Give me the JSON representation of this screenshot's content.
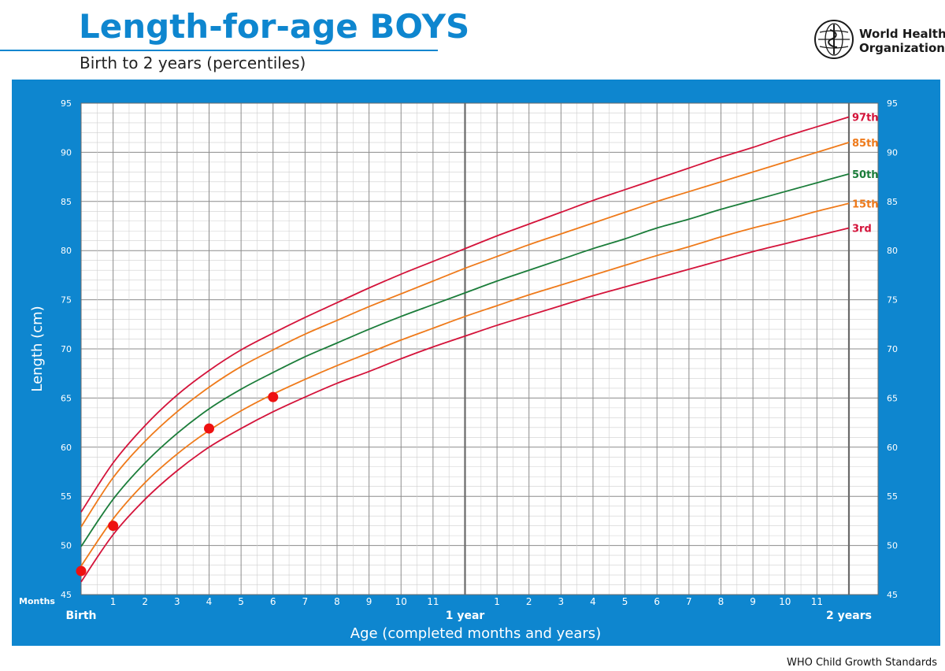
{
  "header": {
    "title": "Length-for-age BOYS",
    "subtitle": "Birth to 2 years (percentiles)",
    "org_line1": "World Health",
    "org_line2": "Organization",
    "logo_icon": "who-emblem-icon"
  },
  "footer": {
    "text": "WHO Child Growth Standards"
  },
  "colors": {
    "panel": "#0e86cf",
    "grid_minor": "#cfcfcf",
    "grid_major": "#8c8c8c",
    "p97": "#d4133a",
    "p85": "#ef7a1a",
    "p50": "#1b7d3a",
    "p15": "#ef7a1a",
    "p3": "#d4133a",
    "points": "#ee1111"
  },
  "chart_data": {
    "type": "line",
    "title": "Length-for-age BOYS",
    "subtitle": "Birth to 2 years (percentiles)",
    "xlabel": "Age (completed months and years)",
    "ylabel": "Length (cm)",
    "xlim": [
      0,
      24
    ],
    "ylim": [
      45,
      95
    ],
    "y_ticks": [
      45,
      50,
      55,
      60,
      65,
      70,
      75,
      80,
      85,
      90,
      95
    ],
    "x_tick_labels": [
      {
        "x": 0,
        "label": "Birth"
      },
      {
        "x": 1,
        "label": "1"
      },
      {
        "x": 2,
        "label": "2"
      },
      {
        "x": 3,
        "label": "3"
      },
      {
        "x": 4,
        "label": "4"
      },
      {
        "x": 5,
        "label": "5"
      },
      {
        "x": 6,
        "label": "6"
      },
      {
        "x": 7,
        "label": "7"
      },
      {
        "x": 8,
        "label": "8"
      },
      {
        "x": 9,
        "label": "9"
      },
      {
        "x": 10,
        "label": "10"
      },
      {
        "x": 11,
        "label": "11"
      },
      {
        "x": 12,
        "label": "1 year"
      },
      {
        "x": 13,
        "label": "1"
      },
      {
        "x": 14,
        "label": "2"
      },
      {
        "x": 15,
        "label": "3"
      },
      {
        "x": 16,
        "label": "4"
      },
      {
        "x": 17,
        "label": "5"
      },
      {
        "x": 18,
        "label": "6"
      },
      {
        "x": 19,
        "label": "7"
      },
      {
        "x": 20,
        "label": "8"
      },
      {
        "x": 21,
        "label": "9"
      },
      {
        "x": 22,
        "label": "10"
      },
      {
        "x": 23,
        "label": "11"
      },
      {
        "x": 24,
        "label": "2 years"
      }
    ],
    "x_unit_label": "Months",
    "grid": true,
    "x": [
      0,
      1,
      2,
      3,
      4,
      5,
      6,
      7,
      8,
      9,
      10,
      11,
      12,
      13,
      14,
      15,
      16,
      17,
      18,
      19,
      20,
      21,
      22,
      23,
      24
    ],
    "series": [
      {
        "name": "97th",
        "color_key": "p97",
        "values": [
          53.4,
          58.4,
          62.2,
          65.3,
          67.8,
          69.9,
          71.6,
          73.2,
          74.7,
          76.2,
          77.6,
          78.9,
          80.2,
          81.5,
          82.7,
          83.9,
          85.1,
          86.2,
          87.3,
          88.4,
          89.5,
          90.5,
          91.6,
          92.6,
          93.6
        ]
      },
      {
        "name": "85th",
        "color_key": "p85",
        "values": [
          51.9,
          56.9,
          60.6,
          63.6,
          66.1,
          68.2,
          69.9,
          71.5,
          72.9,
          74.3,
          75.6,
          76.9,
          78.2,
          79.4,
          80.6,
          81.7,
          82.8,
          83.9,
          85.0,
          86.0,
          87.0,
          88.0,
          89.0,
          90.0,
          91.0
        ]
      },
      {
        "name": "50th",
        "color_key": "p50",
        "values": [
          49.9,
          54.7,
          58.4,
          61.4,
          63.9,
          65.9,
          67.6,
          69.2,
          70.6,
          72.0,
          73.3,
          74.5,
          75.7,
          76.9,
          78.0,
          79.1,
          80.2,
          81.2,
          82.3,
          83.2,
          84.2,
          85.1,
          86.0,
          86.9,
          87.8
        ]
      },
      {
        "name": "15th",
        "color_key": "p15",
        "values": [
          47.9,
          52.7,
          56.4,
          59.3,
          61.7,
          63.7,
          65.4,
          66.9,
          68.3,
          69.6,
          70.9,
          72.1,
          73.3,
          74.4,
          75.5,
          76.5,
          77.5,
          78.5,
          79.5,
          80.4,
          81.4,
          82.3,
          83.1,
          84.0,
          84.8
        ]
      },
      {
        "name": "3rd",
        "color_key": "p3",
        "values": [
          46.3,
          51.1,
          54.7,
          57.6,
          60.0,
          61.9,
          63.6,
          65.1,
          66.5,
          67.7,
          69.0,
          70.2,
          71.3,
          72.4,
          73.4,
          74.4,
          75.4,
          76.3,
          77.2,
          78.1,
          79.0,
          79.9,
          80.7,
          81.5,
          82.3
        ]
      }
    ],
    "points": [
      {
        "x": 0,
        "y": 47.4
      },
      {
        "x": 1,
        "y": 52.0
      },
      {
        "x": 4,
        "y": 61.9
      },
      {
        "x": 6,
        "y": 65.1
      }
    ]
  }
}
